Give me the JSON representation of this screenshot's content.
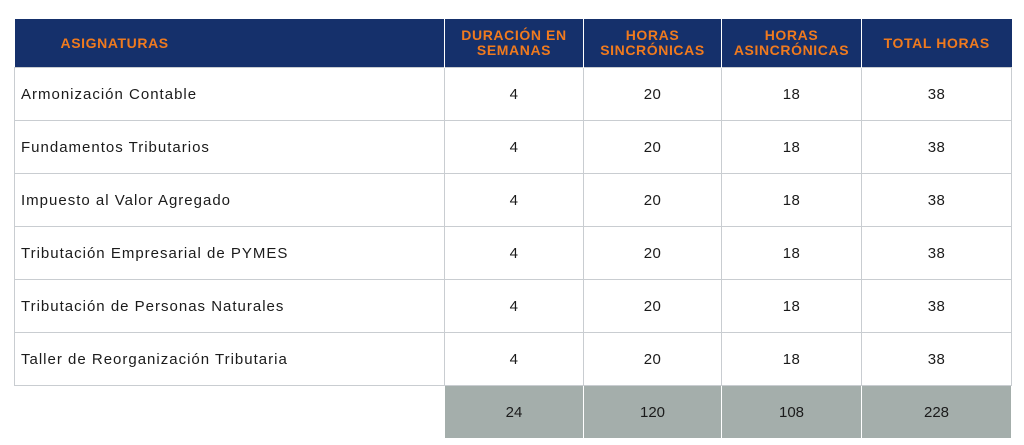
{
  "table": {
    "headers": [
      "ASIGNATURAS",
      "DURACIÓN EN SEMANAS",
      "HORAS SINCRÓNICAS",
      "HORAS ASINCRÓNICAS",
      "TOTAL HORAS"
    ],
    "rows": [
      {
        "name": "Armonización Contable",
        "weeks": "4",
        "sync": "20",
        "async": "18",
        "total": "38"
      },
      {
        "name": "Fundamentos Tributarios",
        "weeks": "4",
        "sync": "20",
        "async": "18",
        "total": "38"
      },
      {
        "name": "Impuesto al Valor Agregado",
        "weeks": "4",
        "sync": "20",
        "async": "18",
        "total": "38"
      },
      {
        "name": "Tributación Empresarial de PYMES",
        "weeks": "4",
        "sync": "20",
        "async": "18",
        "total": "38"
      },
      {
        "name": "Tributación de Personas Naturales",
        "weeks": "4",
        "sync": "20",
        "async": "18",
        "total": "38"
      },
      {
        "name": "Taller de Reorganización Tributaria",
        "weeks": "4",
        "sync": "20",
        "async": "18",
        "total": "38"
      }
    ],
    "totals": {
      "weeks": "24",
      "sync": "120",
      "async": "108",
      "total": "228"
    }
  },
  "colors": {
    "header_bg": "#15306b",
    "header_text": "#f07a1e",
    "totals_bg": "#a4aeab",
    "border": "#c9cdd1"
  }
}
